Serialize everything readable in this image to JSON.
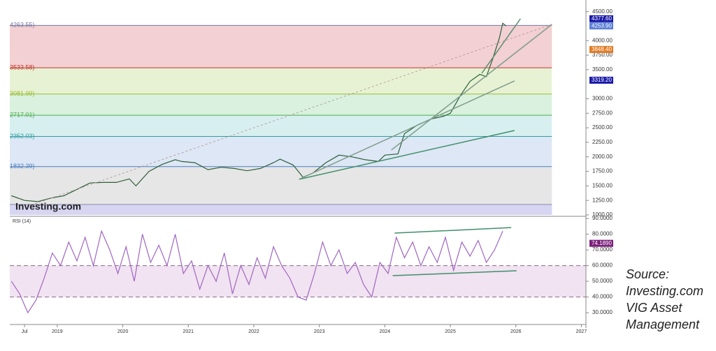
{
  "chart_data": [
    {
      "type": "line",
      "color": "#2f5f3a",
      "x": [
        2018.3,
        2018.5,
        2018.7,
        2018.9,
        2019.1,
        2019.3,
        2019.5,
        2019.7,
        2019.9,
        2020.1,
        2020.2,
        2020.4,
        2020.6,
        2020.8,
        2020.9,
        2021.1,
        2021.3,
        2021.5,
        2021.7,
        2021.9,
        2022.1,
        2022.3,
        2022.4,
        2022.6,
        2022.75,
        2022.9,
        2023.1,
        2023.3,
        2023.5,
        2023.7,
        2023.9,
        2024.0,
        2024.2,
        2024.3,
        2024.5,
        2024.7,
        2024.9,
        2025.0,
        2025.15,
        2025.3,
        2025.45,
        2025.55,
        2025.65,
        2025.75,
        2025.8,
        2025.85
      ],
      "values": [
        1330,
        1250,
        1230,
        1290,
        1330,
        1440,
        1550,
        1560,
        1560,
        1620,
        1500,
        1750,
        1870,
        1950,
        1920,
        1900,
        1780,
        1820,
        1800,
        1760,
        1800,
        1900,
        1960,
        1860,
        1650,
        1720,
        1900,
        2030,
        2000,
        1950,
        1920,
        2030,
        2050,
        2400,
        2550,
        2650,
        2700,
        2750,
        3050,
        3300,
        3420,
        3380,
        3700,
        4050,
        4300,
        4254
      ],
      "xlim": [
        2018.275,
        2027.07
      ],
      "ylim": [
        1000,
        4580
      ],
      "yticks": [
        {
          "value": 4500,
          "label": "4500.00"
        },
        {
          "value": 4000,
          "label": "4000.00"
        },
        {
          "value": 3750,
          "label": "3750.00"
        },
        {
          "value": 3500,
          "label": "3500.00"
        },
        {
          "value": 3000,
          "label": "3000.00"
        },
        {
          "value": 2750,
          "label": "2750.00"
        },
        {
          "value": 2500,
          "label": "2500.00"
        },
        {
          "value": 2250,
          "label": "2250.00"
        },
        {
          "value": 2000,
          "label": "2000.00"
        },
        {
          "value": 1750,
          "label": "1750.00"
        },
        {
          "value": 1500,
          "label": "1500.00"
        },
        {
          "value": 1250,
          "label": "1250.00"
        },
        {
          "value": 1000,
          "label": "1000.00"
        }
      ],
      "fib_end": 2026.55,
      "fib_levels": [
        {
          "value": 4263.55,
          "label": "4263.55)"
        },
        {
          "value": 3533.58,
          "label": "3533.58)"
        },
        {
          "value": 3081.99,
          "label": "3081.99)"
        },
        {
          "value": 2717.01,
          "label": "2717.01)"
        },
        {
          "value": 2352.03,
          "label": "2352.03)"
        },
        {
          "value": 1832.39,
          "label": "1832.39)"
        },
        1180
      ],
      "fib_line_colors": [
        "#7a7aa0",
        "#c0392b",
        "#9cbc32",
        "#4caf50",
        "#2f9e9e",
        "#4a7fc1",
        "#8888aa"
      ],
      "fib_band_colors": [
        "#f2d0d4",
        "#f1f1d4",
        "#e7f2d4",
        "#d9f1de",
        "#d8eff0",
        "#dde7f5",
        "#e6e6e6",
        "#d6d6f2"
      ],
      "trendlines": [
        {
          "x": [
            2022.69,
            2025.98
          ],
          "y": [
            1613,
            2454
          ],
          "color": "#3f8f6a",
          "dash": false
        },
        {
          "x": [
            2022.69,
            2025.98
          ],
          "y": [
            1613,
            3308
          ],
          "color": "#7f9c8a",
          "dash": false
        },
        {
          "x": [
            2024.1,
            2026.55
          ],
          "y": [
            2118,
            4281
          ],
          "color": "#7f9c8a",
          "dash": false
        },
        {
          "x": [
            2025.48,
            2026.07
          ],
          "y": [
            3440,
            4377
          ],
          "color": "#5f8f6f",
          "dash": false
        },
        {
          "x": [
            2018.66,
            2026.55
          ],
          "y": [
            1192,
            4281
          ],
          "color": "#b09090",
          "dash": true
        }
      ],
      "price_markers": [
        {
          "value": 4377.6,
          "label": "4377.60",
          "color": "#1a1aa8"
        },
        {
          "value": 4253.9,
          "label": "4253.90",
          "color": "#5b7fd6"
        },
        {
          "value": 3848.4,
          "label": "3848.40",
          "color": "#e07b24"
        },
        {
          "value": 3319.2,
          "label": "3319.20",
          "color": "#1a1aa8"
        }
      ]
    },
    {
      "type": "line",
      "label": "RSI (14)",
      "color": "#a066c0",
      "x": [
        2018.3,
        2018.425,
        2018.55,
        2018.675,
        2018.8,
        2018.925,
        2019.05,
        2019.175,
        2019.3,
        2019.425,
        2019.55,
        2019.675,
        2019.8,
        2019.925,
        2020.05,
        2020.175,
        2020.3,
        2020.425,
        2020.55,
        2020.675,
        2020.8,
        2020.925,
        2021.05,
        2021.175,
        2021.3,
        2021.425,
        2021.55,
        2021.675,
        2021.8,
        2021.925,
        2022.05,
        2022.175,
        2022.3,
        2022.425,
        2022.55,
        2022.675,
        2022.8,
        2022.925,
        2023.05,
        2023.175,
        2023.3,
        2023.425,
        2023.55,
        2023.675,
        2023.8,
        2023.925,
        2024.05,
        2024.175,
        2024.3,
        2024.425,
        2024.55,
        2024.675,
        2024.8,
        2024.925,
        2025.05,
        2025.175,
        2025.3,
        2025.425,
        2025.55,
        2025.675,
        2025.8
      ],
      "values": [
        50,
        42,
        30,
        38,
        52,
        68,
        60,
        75,
        63,
        78,
        60,
        82,
        70,
        55,
        72,
        50,
        80,
        62,
        73,
        60,
        80,
        55,
        63,
        45,
        60,
        50,
        68,
        42,
        60,
        48,
        65,
        52,
        72,
        60,
        52,
        40,
        38,
        55,
        75,
        60,
        70,
        55,
        62,
        48,
        40,
        62,
        55,
        78,
        65,
        75,
        60,
        72,
        62,
        78,
        57,
        75,
        66,
        76,
        62,
        70,
        82
      ],
      "xlim": [
        2018.275,
        2027.07
      ],
      "ylim": [
        22.5,
        90.5
      ],
      "yticks": [
        {
          "value": 90,
          "label": "90.0000"
        },
        {
          "value": 80,
          "label": "80.0000"
        },
        {
          "value": 70,
          "label": "70.0000"
        },
        {
          "value": 60,
          "label": "60.0000"
        },
        {
          "value": 50,
          "label": "50.0000"
        },
        {
          "value": 40,
          "label": "40.0000"
        },
        {
          "value": 30,
          "label": "30.0000"
        }
      ],
      "band": [
        40,
        60
      ],
      "xticks": [
        {
          "value": 2018.5,
          "label": "Jul"
        },
        2019,
        2020,
        2021,
        2022,
        2023,
        2024,
        2025,
        2026,
        2027
      ],
      "trendlines": [
        {
          "x": [
            2024.15,
            2025.93
          ],
          "y": [
            80.7,
            84.2
          ],
          "color": "#3f8f6a",
          "dash": false
        },
        {
          "x": [
            2024.12,
            2026.01
          ],
          "y": [
            53.6,
            56.7
          ],
          "color": "#3f8f6a",
          "dash": false
        }
      ],
      "marker": {
        "value": 74.189,
        "label": "74.1890",
        "color": "#7a1f7a"
      }
    }
  ],
  "watermark": "Investing.com",
  "source": [
    "Source:",
    "Investing.com",
    "VIG Asset",
    "Management"
  ]
}
